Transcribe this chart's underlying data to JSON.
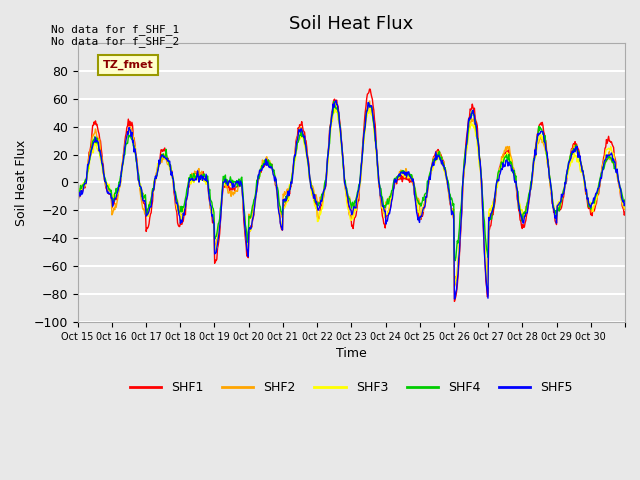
{
  "title": "Soil Heat Flux",
  "ylabel": "Soil Heat Flux",
  "xlabel": "Time",
  "ylim": [
    -100,
    100
  ],
  "yticks": [
    -100,
    -80,
    -60,
    -40,
    -20,
    0,
    20,
    40,
    60,
    80
  ],
  "colors": {
    "SHF1": "#ff0000",
    "SHF2": "#ffa500",
    "SHF3": "#ffff00",
    "SHF4": "#00cc00",
    "SHF5": "#0000ff"
  },
  "annotation_text": "No data for f_SHF_1\nNo data for f_SHF_2",
  "legend_label": "TZ_fmet",
  "fig_bg_color": "#e8e8e8",
  "plot_bg_color": "#e8e8e8",
  "grid_color": "#ffffff",
  "title_fontsize": 13,
  "axis_fontsize": 9,
  "legend_box_color": "#ffffcc",
  "legend_box_edge": "#999900",
  "daily_peaks": [
    38,
    43,
    22,
    5,
    -5,
    15,
    40,
    65,
    65,
    8,
    20,
    55,
    20,
    42,
    25,
    25
  ],
  "daily_troughs": [
    -12,
    -18,
    -28,
    -32,
    -60,
    -35,
    -20,
    -25,
    -28,
    -25,
    -30,
    -85,
    -32,
    -32,
    -25,
    -25
  ]
}
